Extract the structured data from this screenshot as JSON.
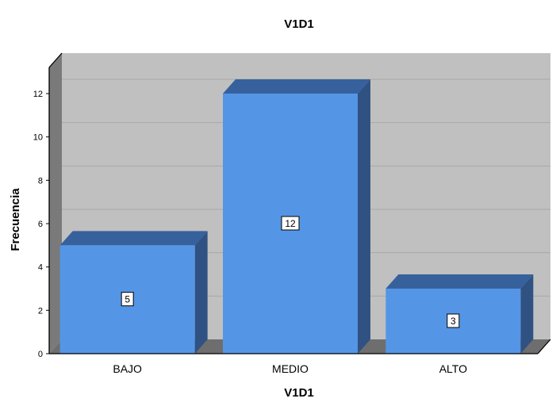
{
  "chart_data": {
    "type": "bar",
    "title": "V1D1",
    "xlabel": "V1D1",
    "ylabel": "Frecuencia",
    "categories": [
      "BAJO",
      "MEDIO",
      "ALTO"
    ],
    "values": [
      5,
      12,
      3
    ],
    "data_labels": [
      "5",
      "12",
      "3"
    ],
    "ylim": [
      0,
      13
    ],
    "yticks": [
      0,
      2,
      4,
      6,
      8,
      10,
      12
    ],
    "ytick_labels": [
      "0",
      "2",
      "4",
      "6",
      "8",
      "10",
      "12"
    ],
    "grid": true,
    "style": "3d",
    "colors": {
      "bar_front": "#5595e6",
      "bar_top": "#36619c",
      "bar_side": "#2f5283",
      "back_wall": "#c0c0c0",
      "side_wall": "#7a7a7a",
      "floor": "#6e6e6e",
      "gridline": "#a8a8a8"
    }
  }
}
